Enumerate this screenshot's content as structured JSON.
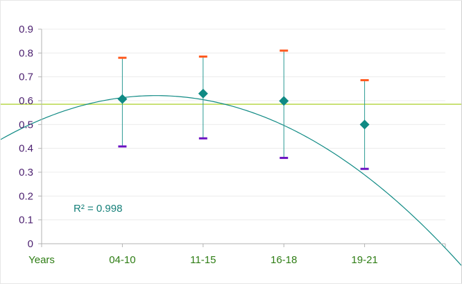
{
  "chart_data": {
    "type": "scatter",
    "categories": [
      "04-10",
      "11-15",
      "16-18",
      "19-21"
    ],
    "category_positions": [
      1,
      2,
      3,
      4
    ],
    "values": [
      0.607,
      0.63,
      0.599,
      0.5
    ],
    "error_upper": [
      0.78,
      0.785,
      0.81,
      0.686
    ],
    "error_lower": [
      0.408,
      0.442,
      0.36,
      0.314
    ],
    "xlabel": "Years",
    "ylim": [
      0,
      0.9
    ],
    "yticks": [
      0,
      0.1,
      0.2,
      0.3,
      0.4,
      0.5,
      0.6,
      0.7,
      0.8,
      0.9
    ],
    "ytick_labels": [
      "0",
      "0.1",
      "0.2",
      "0.3",
      "0.4",
      "0.5",
      "0.6",
      "0.7",
      "0.8",
      "0.9"
    ],
    "xlim": [
      0,
      5
    ],
    "reference_line": 0.585,
    "trendline": {
      "type": "polynomial",
      "coefficients": [
        0.5215,
        0.141,
        -0.0498
      ],
      "r_squared_label": "R² = 0.998"
    },
    "grid": true,
    "colors": {
      "marker": "#0f8a84",
      "trendline": "#0f8a84",
      "error_bar": "#2a9a94",
      "upper_cap": "#ff5a1f",
      "lower_cap": "#6a12c2",
      "reference_line": "#b8d84a",
      "grid": "#ececec",
      "axis": "#b3b3b3",
      "ytick_text": "#4b1f6f",
      "xtick_text": "#2e7d14"
    }
  }
}
